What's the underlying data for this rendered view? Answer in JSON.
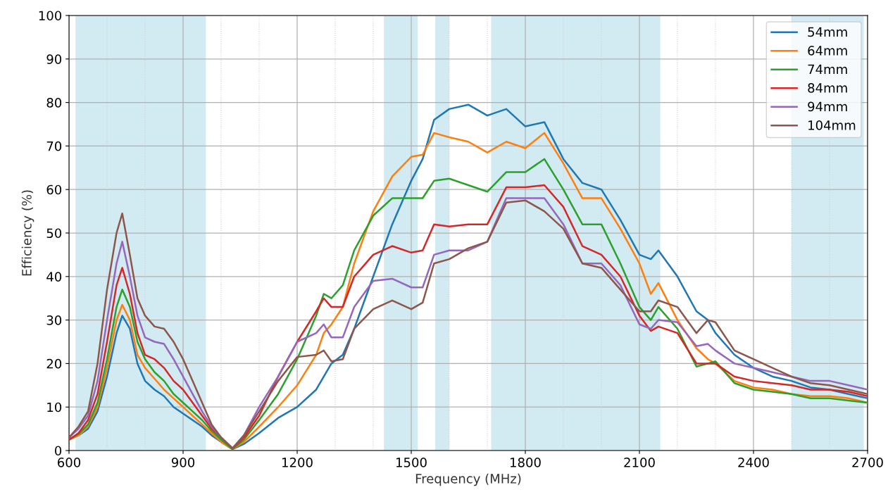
{
  "chart_data": {
    "type": "line",
    "xlabel": "Frequency (MHz)",
    "ylabel": "Efficiency (%)",
    "x": [
      600,
      625,
      650,
      675,
      700,
      725,
      740,
      760,
      780,
      800,
      825,
      850,
      875,
      900,
      925,
      950,
      975,
      1000,
      1030,
      1060,
      1100,
      1150,
      1200,
      1250,
      1270,
      1290,
      1320,
      1350,
      1400,
      1450,
      1500,
      1530,
      1560,
      1600,
      1650,
      1700,
      1750,
      1800,
      1850,
      1900,
      1950,
      2000,
      2050,
      2100,
      2130,
      2150,
      2200,
      2250,
      2280,
      2300,
      2350,
      2400,
      2450,
      2500,
      2550,
      2600,
      2650,
      2700
    ],
    "series": [
      {
        "name": "54mm",
        "color": "#1f77b4",
        "values": [
          2.5,
          3.5,
          5,
          9,
          17,
          27,
          31,
          28,
          20,
          16,
          14,
          12.5,
          10,
          8.5,
          7,
          5.5,
          3.5,
          2,
          0.3,
          1.5,
          4,
          7.5,
          10,
          14,
          17,
          20,
          22,
          28,
          40,
          52,
          62,
          67,
          76,
          78.5,
          79.5,
          77,
          78.5,
          74.5,
          75.5,
          67,
          61.5,
          60,
          53,
          45,
          44,
          46,
          40,
          32,
          30,
          27,
          22,
          19,
          17,
          16,
          14.5,
          14,
          13,
          12
        ]
      },
      {
        "name": "64mm",
        "color": "#ff7f0e",
        "values": [
          2.5,
          3.5,
          5.5,
          10,
          19,
          30,
          33.5,
          30,
          22,
          19,
          16.5,
          14,
          12,
          10,
          8,
          6,
          4,
          2,
          0.3,
          2,
          5.5,
          10,
          15,
          22,
          27,
          29,
          33,
          43,
          55,
          63,
          67.5,
          68,
          73,
          72,
          71,
          68.5,
          71,
          69.5,
          73,
          66,
          58,
          58,
          51,
          43,
          36,
          38.5,
          30,
          23.5,
          21,
          20,
          16,
          14.5,
          14,
          13,
          12.5,
          12.5,
          12,
          11
        ]
      },
      {
        "name": "74mm",
        "color": "#2ca02c",
        "values": [
          2.5,
          3.8,
          6,
          11,
          21,
          33,
          37,
          33,
          25,
          21,
          18,
          16,
          13,
          11,
          9,
          7,
          4.5,
          2.5,
          0.3,
          2.5,
          7,
          13,
          21,
          31,
          36,
          35,
          38,
          46,
          54,
          58,
          58,
          58,
          62,
          62.5,
          61,
          59.5,
          64,
          64,
          67,
          60,
          52,
          52,
          43,
          33,
          30,
          33,
          28,
          19.3,
          20,
          20.5,
          15.5,
          14,
          13.5,
          13,
          12,
          12,
          11.5,
          11
        ]
      },
      {
        "name": "84mm",
        "color": "#d62728",
        "values": [
          2.5,
          4,
          7,
          13,
          25,
          38,
          42,
          36,
          27,
          22,
          21,
          19,
          16,
          14,
          11,
          8,
          5,
          3,
          0.5,
          3,
          8,
          17,
          25,
          32,
          35,
          33,
          33,
          40,
          45,
          47,
          45.5,
          46,
          52,
          51.5,
          52,
          52,
          60.5,
          60.5,
          61,
          56,
          47,
          45,
          40,
          31,
          27.5,
          28.5,
          27,
          20,
          20,
          20,
          17,
          16,
          15.5,
          15,
          14,
          14,
          13.5,
          12.5
        ]
      },
      {
        "name": "94mm",
        "color": "#9467bd",
        "values": [
          3,
          5,
          8,
          16,
          30,
          43,
          48,
          40,
          31,
          26,
          25,
          24.5,
          21,
          17,
          13,
          9,
          5.5,
          3,
          0.5,
          3.5,
          10,
          17,
          25,
          27,
          29,
          26,
          26,
          33,
          39,
          39.5,
          37.5,
          37.5,
          45,
          46,
          46,
          48,
          58,
          58,
          58,
          52,
          43,
          43,
          38,
          29,
          28,
          30,
          29.5,
          24,
          24.5,
          23,
          20,
          19,
          18,
          17,
          16,
          16,
          15,
          14
        ]
      },
      {
        "name": "104mm",
        "color": "#8c564b",
        "values": [
          3,
          5.5,
          9,
          20,
          37,
          50,
          54.5,
          45,
          35,
          31,
          28.5,
          28,
          25,
          21,
          16,
          11,
          6,
          3,
          0.5,
          3.5,
          9,
          16,
          21.5,
          22,
          23,
          20.5,
          21,
          28,
          32.5,
          34.5,
          32.5,
          34,
          43,
          44,
          46.5,
          48,
          57,
          57.5,
          55,
          51,
          43,
          42,
          37,
          32,
          32,
          34.5,
          33,
          27,
          30,
          29.5,
          23,
          21,
          19,
          17,
          15.5,
          15,
          14,
          13
        ]
      }
    ],
    "bands": [
      {
        "axis": "x",
        "from": 617,
        "to": 960,
        "color": "#add8e6"
      },
      {
        "axis": "x",
        "from": 1428,
        "to": 1517,
        "color": "#add8e6"
      },
      {
        "axis": "x",
        "from": 1563,
        "to": 1600,
        "color": "#add8e6"
      },
      {
        "axis": "x",
        "from": 1710,
        "to": 2155,
        "color": "#add8e6"
      },
      {
        "axis": "x",
        "from": 2500,
        "to": 2690,
        "color": "#add8e6"
      }
    ],
    "xlim": [
      600,
      2700
    ],
    "ylim": [
      0,
      100
    ],
    "xticks": [
      600,
      900,
      1200,
      1500,
      1800,
      2100,
      2400,
      2700
    ],
    "yticks": [
      0,
      10,
      20,
      30,
      40,
      50,
      60,
      70,
      80,
      90,
      100
    ],
    "grid": true,
    "legend": "top right",
    "marker": "none",
    "line_style": "solid"
  }
}
